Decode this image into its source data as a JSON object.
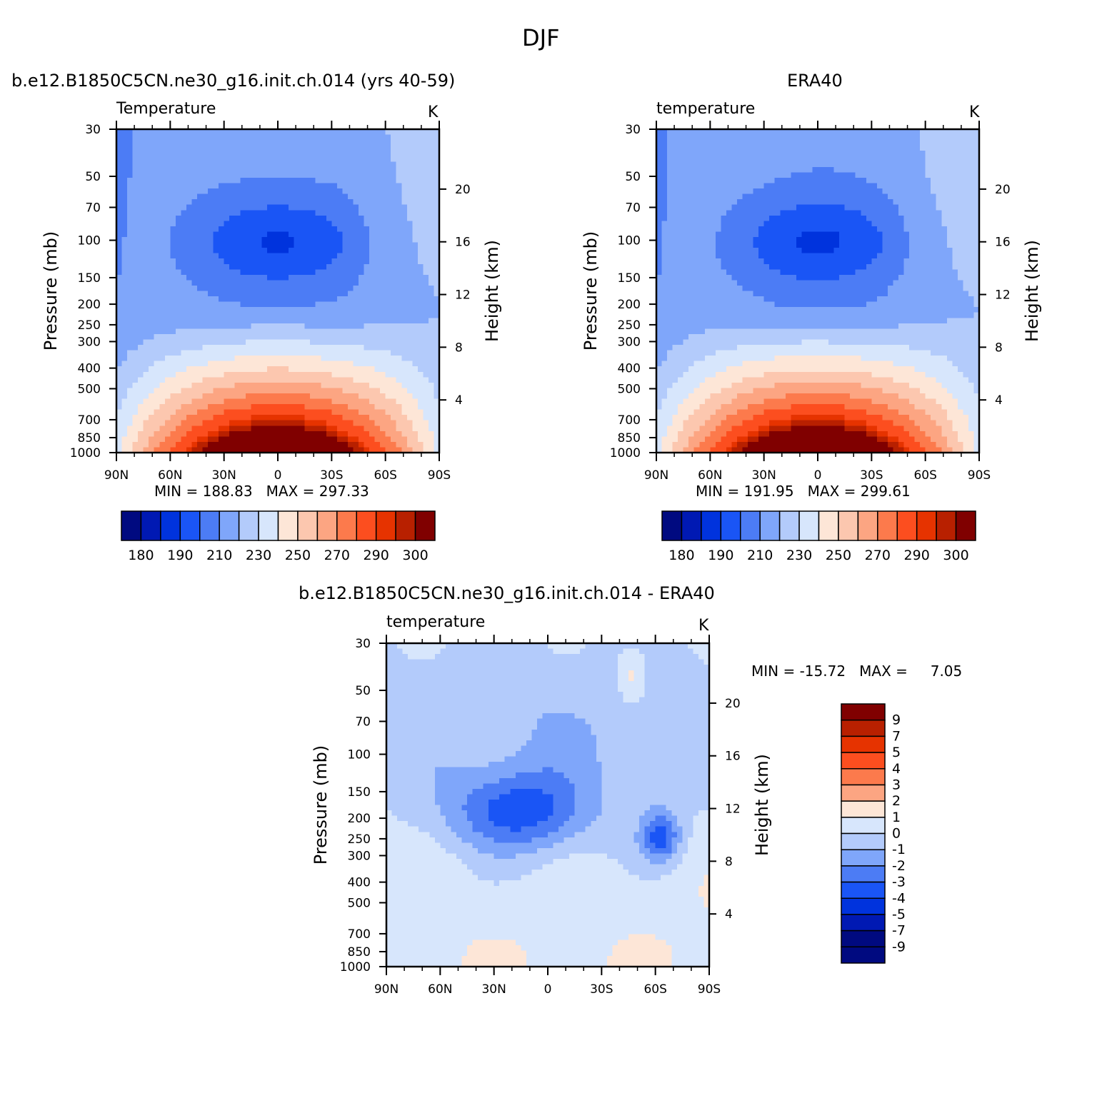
{
  "figure": {
    "title": "DJF"
  },
  "panels": {
    "model": {
      "title": "b.e12.B1850C5CN.ne30_g16.init.ch.014 (yrs 40-59)",
      "left_label": "Temperature",
      "right_label": "K",
      "min_label": "MIN =",
      "min_value": "188.83",
      "max_label": "MAX =",
      "max_value": "297.33"
    },
    "obs": {
      "title": "ERA40",
      "left_label": "temperature",
      "right_label": "K",
      "min_label": "MIN =",
      "min_value": "191.95",
      "max_label": "MAX =",
      "max_value": "299.61"
    },
    "diff": {
      "title": "b.e12.B1850C5CN.ne30_g16.init.ch.014 - ERA40",
      "left_label": "temperature",
      "right_label": "K",
      "min_label": "MIN =",
      "min_value": "-15.72",
      "max_label": "MAX =",
      "max_value": "7.05"
    }
  },
  "axes": {
    "ylabel_left": "Pressure (mb)",
    "ylabel_right": "Height (km)",
    "pressure_ticks": [
      "30",
      "50",
      "70",
      "100",
      "150",
      "200",
      "250",
      "300",
      "400",
      "500",
      "700",
      "850",
      "1000"
    ],
    "height_ticks": [
      "20",
      "16",
      "12",
      "8",
      "4"
    ],
    "lat_ticks": [
      "90N",
      "60N",
      "30N",
      "0",
      "30S",
      "60S",
      "90S"
    ]
  },
  "colorbars": {
    "abs_labels": [
      "180",
      "190",
      "210",
      "230",
      "250",
      "270",
      "290",
      "300"
    ],
    "diff_labels": [
      "9",
      "7",
      "5",
      "4",
      "3",
      "2",
      "1",
      "0",
      "-1",
      "-2",
      "-3",
      "-4",
      "-5",
      "-7",
      "-9"
    ]
  },
  "colors": {
    "abs_palette": [
      "#000a80",
      "#0019b3",
      "#0033dd",
      "#1a55f5",
      "#4c7cf5",
      "#7fa6fa",
      "#b3cbfb",
      "#d7e6fc",
      "#fde6d7",
      "#fcc7af",
      "#fca582",
      "#fc7a4c",
      "#fc4e1f",
      "#e63300",
      "#b82000",
      "#800000"
    ],
    "diff_palette": [
      "#800000",
      "#b82000",
      "#e63300",
      "#fc4e1f",
      "#fc7a4c",
      "#fca582",
      "#fde6d7",
      "#d7e6fc",
      "#b3cbfb",
      "#7fa6fa",
      "#4c7cf5",
      "#1a55f5",
      "#0033dd",
      "#0019b3",
      "#000a80"
    ]
  },
  "chart_data": [
    {
      "type": "heatmap",
      "title": "b.e12.B1850C5CN.ne30_g16.init.ch.014 (yrs 40-59)",
      "subtitle_left": "Temperature",
      "subtitle_right": "K",
      "x_ticks": [
        "90N",
        "60N",
        "30N",
        "0",
        "30S",
        "60S",
        "90S"
      ],
      "y_ticks_pressure_mb": [
        30,
        50,
        70,
        100,
        150,
        200,
        250,
        300,
        400,
        500,
        700,
        850,
        1000
      ],
      "y_ticks_height_km": [
        20,
        16,
        12,
        8,
        4
      ],
      "xlabel": "",
      "ylabel": "Pressure (mb)",
      "ylabel_right": "Height (km)",
      "y_scale": "log",
      "contour_levels": [
        180,
        185,
        190,
        200,
        210,
        220,
        230,
        240,
        250,
        260,
        270,
        280,
        290,
        295,
        300
      ],
      "min": 188.83,
      "max": 297.33
    },
    {
      "type": "heatmap",
      "title": "ERA40",
      "subtitle_left": "temperature",
      "subtitle_right": "K",
      "x_ticks": [
        "90N",
        "60N",
        "30N",
        "0",
        "30S",
        "60S",
        "90S"
      ],
      "y_ticks_pressure_mb": [
        30,
        50,
        70,
        100,
        150,
        200,
        250,
        300,
        400,
        500,
        700,
        850,
        1000
      ],
      "y_ticks_height_km": [
        20,
        16,
        12,
        8,
        4
      ],
      "xlabel": "",
      "ylabel": "Pressure (mb)",
      "ylabel_right": "Height (km)",
      "y_scale": "log",
      "contour_levels": [
        180,
        185,
        190,
        200,
        210,
        220,
        230,
        240,
        250,
        260,
        270,
        280,
        290,
        295,
        300
      ],
      "min": 191.95,
      "max": 299.61
    },
    {
      "type": "heatmap",
      "title": "b.e12.B1850C5CN.ne30_g16.init.ch.014 - ERA40",
      "subtitle_left": "temperature",
      "subtitle_right": "K",
      "x_ticks": [
        "90N",
        "60N",
        "30N",
        "0",
        "30S",
        "60S",
        "90S"
      ],
      "y_ticks_pressure_mb": [
        30,
        50,
        70,
        100,
        150,
        200,
        250,
        300,
        400,
        500,
        700,
        850,
        1000
      ],
      "y_ticks_height_km": [
        20,
        16,
        12,
        8,
        4
      ],
      "xlabel": "",
      "ylabel": "Pressure (mb)",
      "ylabel_right": "Height (km)",
      "y_scale": "log",
      "contour_levels": [
        -9,
        -7,
        -5,
        -4,
        -3,
        -2,
        -1,
        0,
        1,
        2,
        3,
        4,
        5,
        7,
        9
      ],
      "min": -15.72,
      "max": 7.05
    }
  ]
}
